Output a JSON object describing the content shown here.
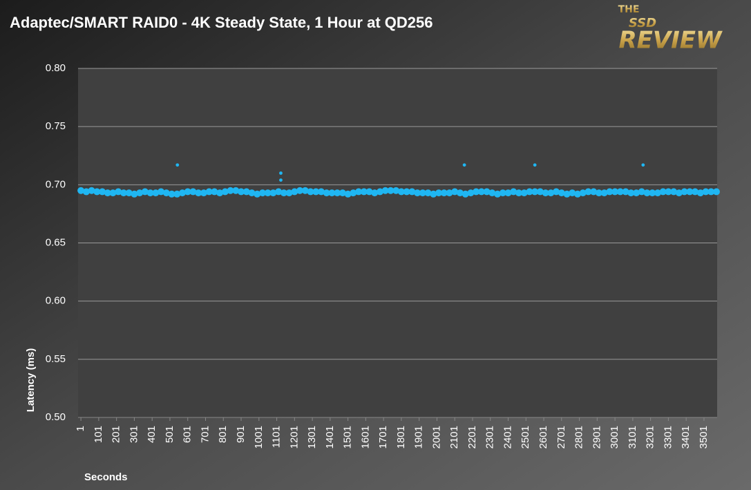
{
  "chart_data": {
    "type": "scatter",
    "title": "Adaptec/SMART RAID0 - 4K Steady State, 1 Hour at QD256",
    "x_label": "Seconds",
    "y_label": "Latency (ms)",
    "color": "#1fb6f2",
    "grid": true,
    "xlim": [
      -15,
      3575
    ],
    "xticks": [
      1,
      101,
      201,
      301,
      401,
      501,
      601,
      701,
      801,
      901,
      1001,
      1101,
      1201,
      1301,
      1401,
      1501,
      1601,
      1701,
      1801,
      1901,
      2001,
      2101,
      2201,
      2301,
      2401,
      2501,
      2601,
      2701,
      2801,
      2901,
      3001,
      3101,
      3201,
      3301,
      3401,
      3501
    ],
    "ylim": [
      0.5,
      0.8
    ],
    "yticks": [
      {
        "value": 0.5,
        "label": "0.50"
      },
      0.55,
      {
        "value": 0.6,
        "label": "0.60"
      },
      0.65,
      {
        "value": 0.7,
        "label": "0.70"
      },
      0.75,
      {
        "value": 0.8,
        "label": "0.80"
      }
    ],
    "x": [
      1,
      31,
      61,
      91,
      121,
      151,
      181,
      211,
      241,
      271,
      301,
      331,
      361,
      391,
      421,
      451,
      481,
      511,
      541,
      571,
      601,
      631,
      661,
      691,
      721,
      751,
      781,
      811,
      841,
      871,
      901,
      931,
      961,
      991,
      1021,
      1051,
      1081,
      1111,
      1141,
      1171,
      1201,
      1231,
      1261,
      1291,
      1321,
      1351,
      1381,
      1411,
      1441,
      1471,
      1501,
      1531,
      1561,
      1591,
      1621,
      1651,
      1681,
      1711,
      1741,
      1771,
      1801,
      1831,
      1861,
      1891,
      1921,
      1951,
      1981,
      2011,
      2041,
      2071,
      2101,
      2131,
      2161,
      2191,
      2221,
      2251,
      2281,
      2311,
      2341,
      2371,
      2401,
      2431,
      2461,
      2491,
      2521,
      2551,
      2581,
      2611,
      2641,
      2671,
      2701,
      2731,
      2761,
      2791,
      2821,
      2851,
      2881,
      2911,
      2941,
      2971,
      3001,
      3031,
      3061,
      3091,
      3121,
      3151,
      3181,
      3211,
      3241,
      3271,
      3301,
      3331,
      3361,
      3391,
      3421,
      3451,
      3481,
      3511,
      3541,
      3571,
      543,
      1124,
      1124,
      2155,
      2551,
      3159
    ],
    "values": [
      0.695,
      0.694,
      0.695,
      0.694,
      0.694,
      0.693,
      0.693,
      0.694,
      0.693,
      0.693,
      0.692,
      0.693,
      0.694,
      0.693,
      0.693,
      0.694,
      0.693,
      0.692,
      0.692,
      0.693,
      0.694,
      0.694,
      0.693,
      0.693,
      0.694,
      0.694,
      0.693,
      0.694,
      0.695,
      0.695,
      0.694,
      0.694,
      0.693,
      0.692,
      0.693,
      0.693,
      0.693,
      0.694,
      0.693,
      0.693,
      0.694,
      0.695,
      0.695,
      0.694,
      0.694,
      0.694,
      0.693,
      0.693,
      0.693,
      0.693,
      0.692,
      0.693,
      0.694,
      0.694,
      0.694,
      0.693,
      0.694,
      0.695,
      0.695,
      0.695,
      0.694,
      0.694,
      0.694,
      0.693,
      0.693,
      0.693,
      0.692,
      0.693,
      0.693,
      0.693,
      0.694,
      0.693,
      0.692,
      0.693,
      0.694,
      0.694,
      0.694,
      0.693,
      0.692,
      0.693,
      0.693,
      0.694,
      0.693,
      0.693,
      0.694,
      0.694,
      0.694,
      0.693,
      0.693,
      0.694,
      0.693,
      0.692,
      0.693,
      0.692,
      0.693,
      0.694,
      0.694,
      0.693,
      0.693,
      0.694,
      0.694,
      0.694,
      0.694,
      0.693,
      0.693,
      0.694,
      0.693,
      0.693,
      0.693,
      0.694,
      0.694,
      0.694,
      0.693,
      0.694,
      0.694,
      0.694,
      0.693,
      0.694,
      0.694,
      0.694,
      0.717,
      0.71,
      0.704,
      0.717,
      0.717,
      0.717
    ]
  },
  "logo": {
    "top": "THE",
    "middle": "SSD",
    "bottom": "REVIEW"
  }
}
